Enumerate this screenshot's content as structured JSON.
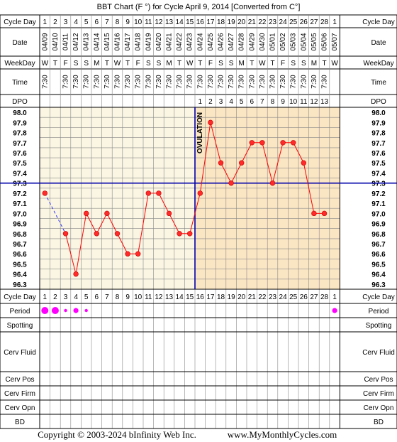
{
  "header": {
    "title": "BBT Chart (F °) for Cycle April 9, 2014  [Converted from C°]"
  },
  "row_labels": {
    "cycle_day": "Cycle Day",
    "date": "Date",
    "weekday": "WeekDay",
    "time": "Time",
    "dpo": "DPO",
    "period": "Period",
    "spotting": "Spotting",
    "cerv_fluid": "Cerv Fluid",
    "cerv_pos": "Cerv Pos",
    "cerv_firm": "Cerv Firm",
    "cerv_opn": "Cerv Opn",
    "bd": "BD"
  },
  "chart_data": {
    "type": "line",
    "days": [
      1,
      2,
      3,
      4,
      5,
      6,
      7,
      8,
      9,
      10,
      11,
      12,
      13,
      14,
      15,
      16,
      17,
      18,
      19,
      20,
      21,
      22,
      23,
      24,
      25,
      26,
      27,
      28,
      1
    ],
    "dates": [
      "04/09",
      "04/10",
      "04/11",
      "04/12",
      "04/13",
      "04/14",
      "04/15",
      "04/16",
      "04/17",
      "04/18",
      "04/19",
      "04/20",
      "04/21",
      "04/22",
      "04/23",
      "04/24",
      "04/25",
      "04/26",
      "04/27",
      "04/28",
      "04/29",
      "04/30",
      "05/01",
      "05/02",
      "05/03",
      "05/04",
      "05/05",
      "05/06",
      "05/07"
    ],
    "weekdays": [
      "W",
      "T",
      "F",
      "S",
      "S",
      "M",
      "T",
      "W",
      "T",
      "F",
      "S",
      "S",
      "M",
      "T",
      "W",
      "T",
      "F",
      "S",
      "S",
      "M",
      "T",
      "W",
      "T",
      "F",
      "S",
      "S",
      "M",
      "T",
      "W"
    ],
    "times": [
      "7:30",
      "",
      "7:30",
      "7:30",
      "7:30",
      "7:30",
      "7:30",
      "7:30",
      "7:30",
      "7:30",
      "7:30",
      "7:30",
      "7:30",
      "7:30",
      "7:30",
      "7:30",
      "7:30",
      "7:30",
      "7:30",
      "7:30",
      "7:30",
      "7:30",
      "7:30",
      "7:30",
      "7:30",
      "7:30",
      "7:30",
      "7:30",
      ""
    ],
    "dpo": [
      "",
      "",
      "",
      "",
      "",
      "",
      "",
      "",
      "",
      "",
      "",
      "",
      "",
      "",
      "",
      "1",
      "2",
      "3",
      "4",
      "5",
      "6",
      "7",
      "8",
      "9",
      "10",
      "11",
      "12",
      "13",
      ""
    ],
    "temps": [
      97.2,
      null,
      96.8,
      96.4,
      97.0,
      96.8,
      97.0,
      96.8,
      96.6,
      96.6,
      97.2,
      97.2,
      97.0,
      96.8,
      96.8,
      97.2,
      97.9,
      97.5,
      97.3,
      97.5,
      97.7,
      97.7,
      97.3,
      97.7,
      97.7,
      97.5,
      97.0,
      97.0,
      null
    ],
    "y_ticks": [
      "98.0",
      "97.9",
      "97.8",
      "97.7",
      "97.6",
      "97.5",
      "97.4",
      "97.3",
      "97.2",
      "97.1",
      "97.0",
      "96.9",
      "96.8",
      "96.7",
      "96.6",
      "96.5",
      "96.4",
      "96.3"
    ],
    "ylim": [
      96.3,
      98.0
    ],
    "coverline": 97.3,
    "ovulation_day": 15,
    "ovulation_label": "OVULATION",
    "period": [
      "large",
      "large",
      "small",
      "medium",
      "small",
      "",
      "",
      "",
      "",
      "",
      "",
      "",
      "",
      "",
      "",
      "",
      "",
      "",
      "",
      "",
      "",
      "",
      "",
      "",
      "",
      "",
      "",
      "",
      "medium"
    ],
    "grid": true
  },
  "colors": {
    "pre_ovulation_fill": "#fbf6e3",
    "post_ovulation_fill": "#fbe6c4",
    "temp_line": "#ff0000",
    "temp_point": "#ff2a2a",
    "coverline": "#0000aa",
    "period_dot": "#ff00ff",
    "gap_line": "#3333ff"
  },
  "footer": {
    "copyright": "Copyright © 2003-2024 bInfinity Web Inc.",
    "site": "www.MyMonthlyCycles.com"
  }
}
